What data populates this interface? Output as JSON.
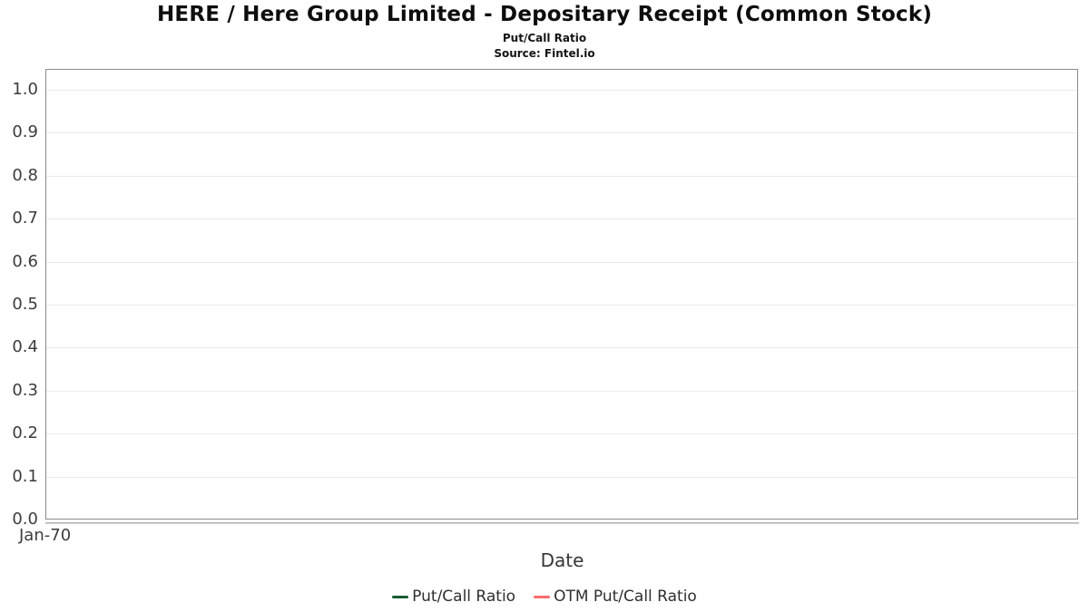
{
  "chart_data": {
    "type": "line",
    "title": "HERE / Here Group Limited - Depositary Receipt (Common Stock)",
    "subtitle": "Put/Call Ratio",
    "source": "Source: Fintel.io",
    "xlabel": "Date",
    "x_tick_labels": [
      "Jan-70"
    ],
    "y_tick_labels": [
      "1.0",
      "0.9",
      "0.8",
      "0.7",
      "0.6",
      "0.5",
      "0.4",
      "0.3",
      "0.2",
      "0.1",
      "0.0"
    ],
    "y_ticks": [
      1.0,
      0.9,
      0.8,
      0.7,
      0.6,
      0.5,
      0.4,
      0.3,
      0.2,
      0.1,
      0.0
    ],
    "ylim": [
      0.0,
      1.05
    ],
    "grid": true,
    "legend_position": "bottom",
    "series": [
      {
        "name": "Put/Call Ratio",
        "color": "#175d33",
        "values": []
      },
      {
        "name": "OTM Put/Call Ratio",
        "color": "#f96a6a",
        "values": []
      }
    ],
    "colors": {
      "plot_border": "#8a8a8a",
      "gridline": "#eaeaea",
      "axis_line": "#a9a9a9",
      "tick_text": "#3c3c3c",
      "title_text": "#0d0d0d",
      "background": "#ffffff"
    }
  }
}
